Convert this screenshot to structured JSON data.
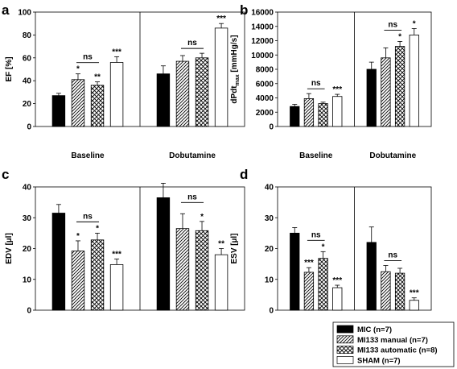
{
  "chart_data": [
    {
      "type": "bar",
      "panel_letter": "a",
      "ylabel": "EF [%]",
      "ylim": [
        0,
        100
      ],
      "yticks": [
        "0",
        "20",
        "40",
        "60",
        "80",
        "100"
      ],
      "groups": [
        "Baseline",
        "Dobutamine"
      ],
      "series": [
        {
          "name": "MIC (n=7)",
          "values": [
            27,
            46
          ],
          "errors": [
            2,
            7
          ]
        },
        {
          "name": "MI133 manual (n=7)",
          "values": [
            41,
            57
          ],
          "errors": [
            5,
            5
          ]
        },
        {
          "name": "MI133 automatic (n=8)",
          "values": [
            36,
            60
          ],
          "errors": [
            3,
            4
          ]
        },
        {
          "name": "SHAM (n=7)",
          "values": [
            56,
            86
          ],
          "errors": [
            5,
            4
          ]
        }
      ],
      "significance": [
        [
          "",
          "*",
          "**",
          "***"
        ],
        [
          "",
          "",
          "",
          "***"
        ]
      ],
      "ns_label": [
        "ns",
        "ns"
      ]
    },
    {
      "type": "bar",
      "panel_letter": "b",
      "ylabel": "dPdt",
      "ylabel_sub": "max",
      "ylabel_unit": "[mmHg/s]",
      "ylim": [
        0,
        16000
      ],
      "yticks": [
        "0",
        "2000",
        "4000",
        "6000",
        "8000",
        "10000",
        "12000",
        "14000",
        "16000"
      ],
      "groups": [
        "Baseline",
        "Dobutamine"
      ],
      "series": [
        {
          "name": "MIC (n=7)",
          "values": [
            2800,
            8000
          ],
          "errors": [
            300,
            1000
          ]
        },
        {
          "name": "MI133 manual (n=7)",
          "values": [
            3900,
            9600
          ],
          "errors": [
            700,
            1400
          ]
        },
        {
          "name": "MI133 automatic (n=8)",
          "values": [
            3200,
            11200
          ],
          "errors": [
            200,
            700
          ]
        },
        {
          "name": "SHAM (n=7)",
          "values": [
            4200,
            12800
          ],
          "errors": [
            300,
            900
          ]
        }
      ],
      "significance": [
        [
          "",
          "",
          "",
          "***"
        ],
        [
          "",
          "",
          "*",
          "*"
        ]
      ],
      "ns_label": [
        "ns",
        "ns"
      ]
    },
    {
      "type": "bar",
      "panel_letter": "c",
      "ylabel": "EDV [µl]",
      "ylim": [
        0,
        40
      ],
      "yticks": [
        "0",
        "10",
        "20",
        "30",
        "40"
      ],
      "groups": [
        "",
        ""
      ],
      "series": [
        {
          "name": "MIC (n=7)",
          "values": [
            31.5,
            36.5
          ],
          "errors": [
            2.8,
            4.7
          ]
        },
        {
          "name": "MI133 manual (n=7)",
          "values": [
            19.2,
            26.5
          ],
          "errors": [
            3.3,
            4.8
          ]
        },
        {
          "name": "MI133 automatic (n=8)",
          "values": [
            22.8,
            25.8
          ],
          "errors": [
            2.2,
            3
          ]
        },
        {
          "name": "SHAM (n=7)",
          "values": [
            14.8,
            18
          ],
          "errors": [
            1.8,
            2
          ]
        }
      ],
      "significance": [
        [
          "",
          "*",
          "*",
          "***"
        ],
        [
          "",
          "",
          "*",
          "**"
        ]
      ],
      "ns_label": [
        "ns",
        "ns"
      ]
    },
    {
      "type": "bar",
      "panel_letter": "d",
      "ylabel": "ESV [µl]",
      "ylim": [
        0,
        40
      ],
      "yticks": [
        "0",
        "10",
        "20",
        "30",
        "40"
      ],
      "groups": [
        "",
        ""
      ],
      "series": [
        {
          "name": "MIC (n=7)",
          "values": [
            25,
            22
          ],
          "errors": [
            1.8,
            5
          ]
        },
        {
          "name": "MI133 manual (n=7)",
          "values": [
            12.3,
            12.5
          ],
          "errors": [
            1.5,
            2
          ]
        },
        {
          "name": "MI133 automatic (n=8)",
          "values": [
            16.8,
            12
          ],
          "errors": [
            2.2,
            1.6
          ]
        },
        {
          "name": "SHAM (n=7)",
          "values": [
            7.3,
            3.2
          ],
          "errors": [
            0.8,
            0.8
          ]
        }
      ],
      "significance": [
        [
          "",
          "***",
          "*",
          "***"
        ],
        [
          "",
          "",
          "",
          "***"
        ]
      ],
      "ns_label": [
        "ns",
        "ns"
      ]
    }
  ],
  "legend": {
    "entries": [
      {
        "label": "MIC (n=7)",
        "pattern": "solid"
      },
      {
        "label": "MI133 manual (n=7)",
        "pattern": "diagonal"
      },
      {
        "label": "MI133 automatic (n=8)",
        "pattern": "crosshatch"
      },
      {
        "label": "SHAM (n=7)",
        "pattern": "white"
      }
    ],
    "placement": "bottom-right"
  }
}
